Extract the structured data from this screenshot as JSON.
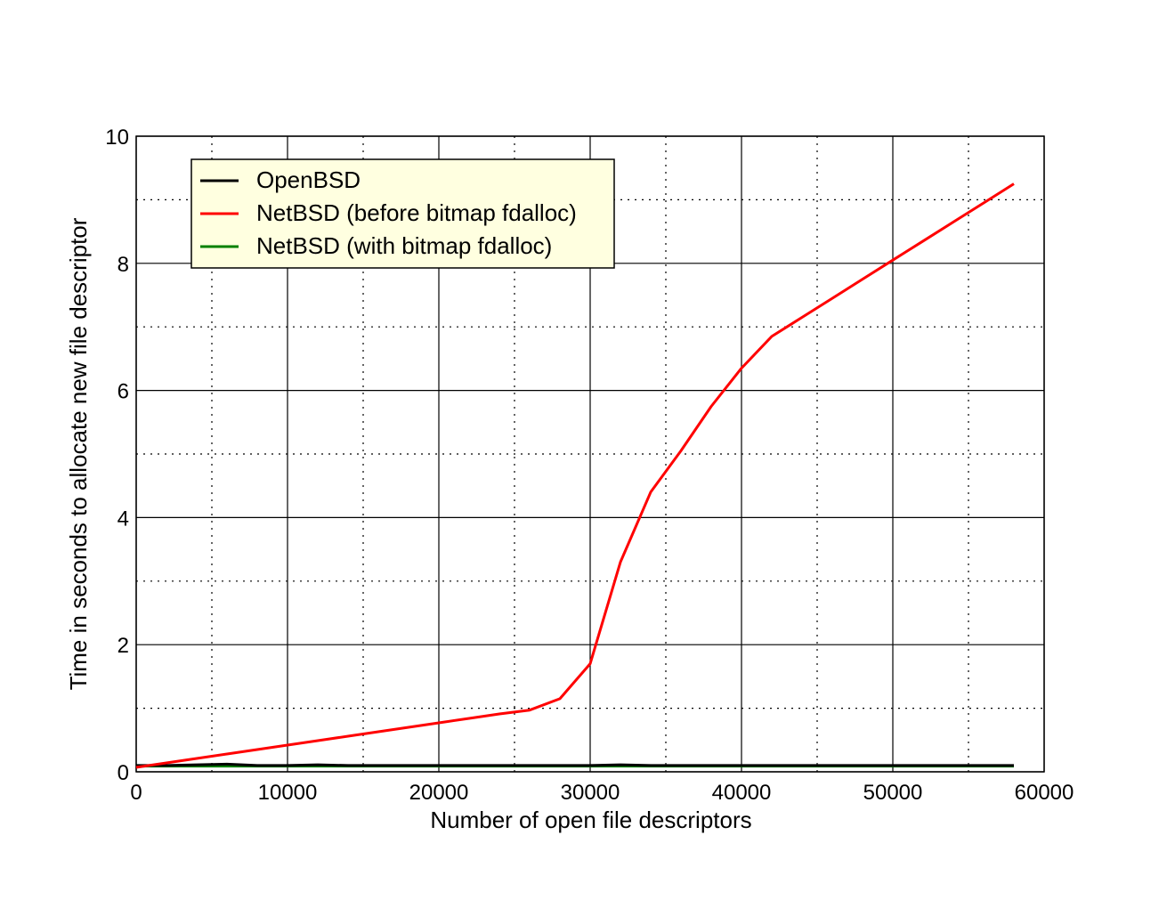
{
  "chart_data": {
    "type": "line",
    "title": "",
    "xlabel": "Number of open file descriptors",
    "ylabel": "Time in seconds to allocate new file descriptor",
    "xlim": [
      0,
      60000
    ],
    "ylim": [
      0,
      10
    ],
    "xticks": [
      0,
      10000,
      20000,
      30000,
      40000,
      50000,
      60000
    ],
    "xtick_labels": [
      "0",
      "10000",
      "20000",
      "30000",
      "40000",
      "50000",
      "60000"
    ],
    "yticks": [
      0,
      2,
      4,
      6,
      8,
      10
    ],
    "ytick_labels": [
      "0",
      "2",
      "4",
      "6",
      "8",
      "10"
    ],
    "grid": true,
    "legend_position": "top-left",
    "series": [
      {
        "name": "OpenBSD",
        "color": "#000000",
        "x": [
          0,
          2000,
          4000,
          6000,
          8000,
          10000,
          12000,
          14000,
          16000,
          18000,
          20000,
          22000,
          24000,
          26000,
          28000,
          30000,
          32000,
          34000,
          36000,
          38000,
          40000,
          42000,
          44000,
          46000,
          48000,
          50000,
          52000,
          54000,
          56000,
          58000
        ],
        "y": [
          0.1,
          0.1,
          0.11,
          0.12,
          0.1,
          0.1,
          0.11,
          0.1,
          0.1,
          0.1,
          0.1,
          0.1,
          0.1,
          0.1,
          0.1,
          0.1,
          0.11,
          0.1,
          0.1,
          0.1,
          0.1,
          0.1,
          0.1,
          0.1,
          0.1,
          0.1,
          0.1,
          0.1,
          0.1,
          0.1
        ]
      },
      {
        "name": "NetBSD (before bitmap fdalloc)",
        "color": "#ff0000",
        "x": [
          0,
          2000,
          4000,
          6000,
          8000,
          10000,
          12000,
          14000,
          16000,
          18000,
          20000,
          22000,
          24000,
          26000,
          28000,
          30000,
          32000,
          34000,
          36000,
          38000,
          40000,
          42000,
          44000,
          46000,
          48000,
          50000,
          52000,
          54000,
          56000,
          58000
        ],
        "y": [
          0.07,
          0.14,
          0.21,
          0.28,
          0.35,
          0.42,
          0.49,
          0.56,
          0.63,
          0.7,
          0.77,
          0.84,
          0.91,
          0.97,
          1.15,
          1.7,
          3.3,
          4.4,
          5.05,
          5.75,
          6.35,
          6.85,
          7.15,
          7.45,
          7.75,
          8.05,
          8.35,
          8.65,
          8.95,
          9.25
        ]
      },
      {
        "name": "NetBSD (with bitmap fdalloc)",
        "color": "#008000",
        "x": [
          0,
          2000,
          4000,
          6000,
          8000,
          10000,
          12000,
          14000,
          16000,
          18000,
          20000,
          22000,
          24000,
          26000,
          28000,
          30000,
          32000,
          34000,
          36000,
          38000,
          40000,
          42000,
          44000,
          46000,
          48000,
          50000,
          52000,
          54000,
          56000,
          58000
        ],
        "y": [
          0.09,
          0.09,
          0.09,
          0.09,
          0.09,
          0.09,
          0.09,
          0.09,
          0.09,
          0.09,
          0.09,
          0.09,
          0.09,
          0.09,
          0.09,
          0.09,
          0.09,
          0.09,
          0.09,
          0.09,
          0.09,
          0.09,
          0.09,
          0.09,
          0.09,
          0.09,
          0.09,
          0.09,
          0.09,
          0.09
        ]
      }
    ]
  }
}
